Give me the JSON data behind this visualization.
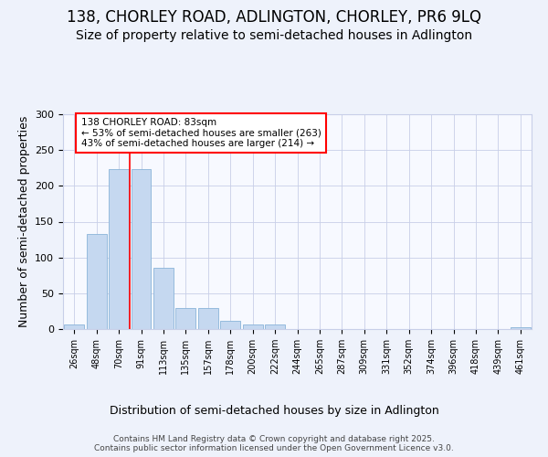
{
  "title": "138, CHORLEY ROAD, ADLINGTON, CHORLEY, PR6 9LQ",
  "subtitle": "Size of property relative to semi-detached houses in Adlington",
  "xlabel": "Distribution of semi-detached houses by size in Adlington",
  "ylabel": "Number of semi-detached properties",
  "categories": [
    "26sqm",
    "48sqm",
    "70sqm",
    "91sqm",
    "113sqm",
    "135sqm",
    "157sqm",
    "178sqm",
    "200sqm",
    "222sqm",
    "244sqm",
    "265sqm",
    "287sqm",
    "309sqm",
    "331sqm",
    "352sqm",
    "374sqm",
    "396sqm",
    "418sqm",
    "439sqm",
    "461sqm"
  ],
  "values": [
    6,
    133,
    224,
    224,
    86,
    29,
    29,
    11,
    6,
    6,
    0,
    0,
    0,
    0,
    0,
    0,
    0,
    0,
    0,
    0,
    3
  ],
  "bar_color": "#c5d8f0",
  "bar_edge_color": "#8ab4d8",
  "red_line_x": 2.5,
  "annotation_line1": "138 CHORLEY ROAD: 83sqm",
  "annotation_line2": "← 53% of semi-detached houses are smaller (263)",
  "annotation_line3": "43% of semi-detached houses are larger (214) →",
  "ylim": [
    0,
    300
  ],
  "yticks": [
    0,
    50,
    100,
    150,
    200,
    250,
    300
  ],
  "footer": "Contains HM Land Registry data © Crown copyright and database right 2025.\nContains public sector information licensed under the Open Government Licence v3.0.",
  "bg_color": "#eef2fb",
  "plot_bg_color": "#f7f9ff",
  "grid_color": "#c8cfe8",
  "title_fontsize": 12,
  "subtitle_fontsize": 10,
  "axis_label_fontsize": 9,
  "tick_fontsize": 7,
  "footer_fontsize": 6.5
}
